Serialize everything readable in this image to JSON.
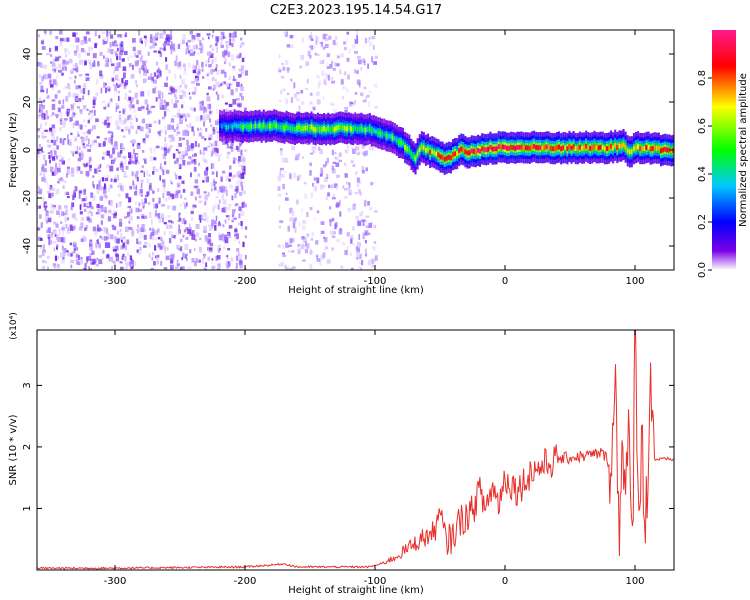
{
  "title": "C2E3.2023.195.14.54.G17",
  "chart_data": [
    {
      "type": "heatmap",
      "xlabel": "Height of straight line (km)",
      "ylabel": "Frequency (Hz)",
      "xlim": [
        -360,
        130
      ],
      "ylim": [
        -50,
        50
      ],
      "x_ticks": [
        -300,
        -200,
        -100,
        0,
        100
      ],
      "y_ticks": [
        -40,
        -20,
        0,
        20,
        40
      ],
      "colorbar": {
        "label": "Normalized spectral amplitude",
        "range": [
          0,
          1
        ],
        "ticks": [
          0.0,
          0.2,
          0.4,
          0.6,
          0.8
        ],
        "colormap": [
          "#ffffff",
          "#7a00e6",
          "#0000ff",
          "#00c8ff",
          "#00ff00",
          "#ffff00",
          "#ff0000",
          "#ff1a8c"
        ]
      },
      "noise_regions_km": [
        [
          -360,
          -200
        ],
        [
          -175,
          -100
        ]
      ],
      "ridge": {
        "name": "dominant frequency track",
        "x": [
          -220,
          -200,
          -180,
          -160,
          -140,
          -120,
          -110,
          -100,
          -90,
          -80,
          -75,
          -70,
          -65,
          -60,
          -50,
          -45,
          -40,
          -35,
          -30,
          -20,
          -10,
          0,
          20,
          40,
          60,
          80,
          90,
          95,
          100,
          110,
          120,
          130
        ],
        "y": [
          10,
          10,
          10,
          9,
          9,
          9,
          9,
          8,
          6,
          3,
          0,
          -4,
          1,
          0,
          -3,
          -4,
          -2,
          0,
          -1,
          0,
          1,
          1,
          1,
          1,
          1,
          1,
          2,
          -1,
          1,
          1,
          0,
          0
        ],
        "amplitude": [
          0.3,
          0.45,
          0.5,
          0.55,
          0.6,
          0.55,
          0.5,
          0.45,
          0.45,
          0.5,
          0.55,
          0.6,
          0.65,
          0.7,
          0.75,
          0.8,
          0.8,
          0.85,
          0.85,
          0.9,
          0.9,
          0.9,
          0.85,
          0.8,
          0.8,
          0.8,
          0.75,
          0.65,
          0.7,
          0.8,
          0.85,
          0.85
        ]
      }
    },
    {
      "type": "line",
      "xlabel": "Height of straight line (km)",
      "ylabel": "SNR (10 * v/v)",
      "y_multiplier": "(x10⁴)",
      "xlim": [
        -360,
        130
      ],
      "ylim": [
        0,
        3.9
      ],
      "x_ticks": [
        -300,
        -200,
        -100,
        0,
        100
      ],
      "y_ticks": [
        1,
        2,
        3
      ],
      "color": "#e8302c",
      "series": [
        {
          "x": [
            -360,
            -300,
            -250,
            -200,
            -180,
            -170,
            -160,
            -120,
            -105,
            -95,
            -85,
            -75,
            -65,
            -55,
            -50,
            -45,
            -40,
            -35,
            -25,
            -20,
            -15,
            -10,
            -5,
            0,
            10,
            20,
            30,
            40,
            60,
            75,
            82,
            85,
            88,
            90,
            92,
            95,
            98,
            100,
            103,
            105,
            108,
            110,
            112,
            115,
            120,
            125,
            130
          ],
          "y": [
            0.03,
            0.03,
            0.04,
            0.05,
            0.08,
            0.1,
            0.05,
            0.05,
            0.05,
            0.1,
            0.2,
            0.35,
            0.5,
            0.6,
            0.9,
            0.45,
            0.55,
            0.8,
            0.95,
            1.3,
            1.0,
            1.35,
            1.1,
            1.5,
            1.3,
            1.6,
            1.7,
            1.8,
            1.85,
            1.9,
            1.7,
            3.0,
            0.5,
            2.6,
            1.2,
            2.0,
            0.3,
            3.9,
            1.0,
            2.2,
            0.6,
            1.9,
            3.2,
            1.8,
            1.8,
            1.8,
            1.8
          ]
        }
      ]
    }
  ]
}
